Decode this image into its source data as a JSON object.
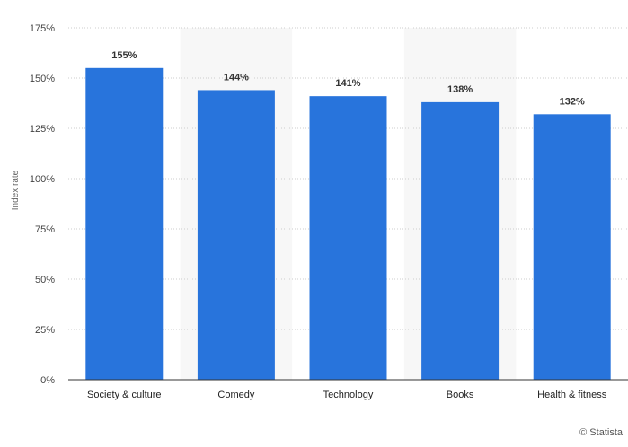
{
  "chart_data": {
    "type": "bar",
    "categories": [
      "Society & culture",
      "Comedy",
      "Technology",
      "Books",
      "Health & fitness"
    ],
    "values": [
      155,
      144,
      141,
      138,
      132
    ],
    "data_labels": [
      "155%",
      "144%",
      "141%",
      "138%",
      "132%"
    ],
    "ylabel": "Index rate",
    "ylim": [
      0,
      175
    ],
    "y_ticks": [
      0,
      25,
      50,
      75,
      100,
      125,
      150,
      175
    ],
    "y_tick_labels": [
      "0%",
      "25%",
      "50%",
      "75%",
      "100%",
      "125%",
      "150%",
      "175%"
    ],
    "grid": true,
    "bar_color": "#2874dc",
    "alt_band_color": "#f7f7f7"
  },
  "credit": "© Statista"
}
